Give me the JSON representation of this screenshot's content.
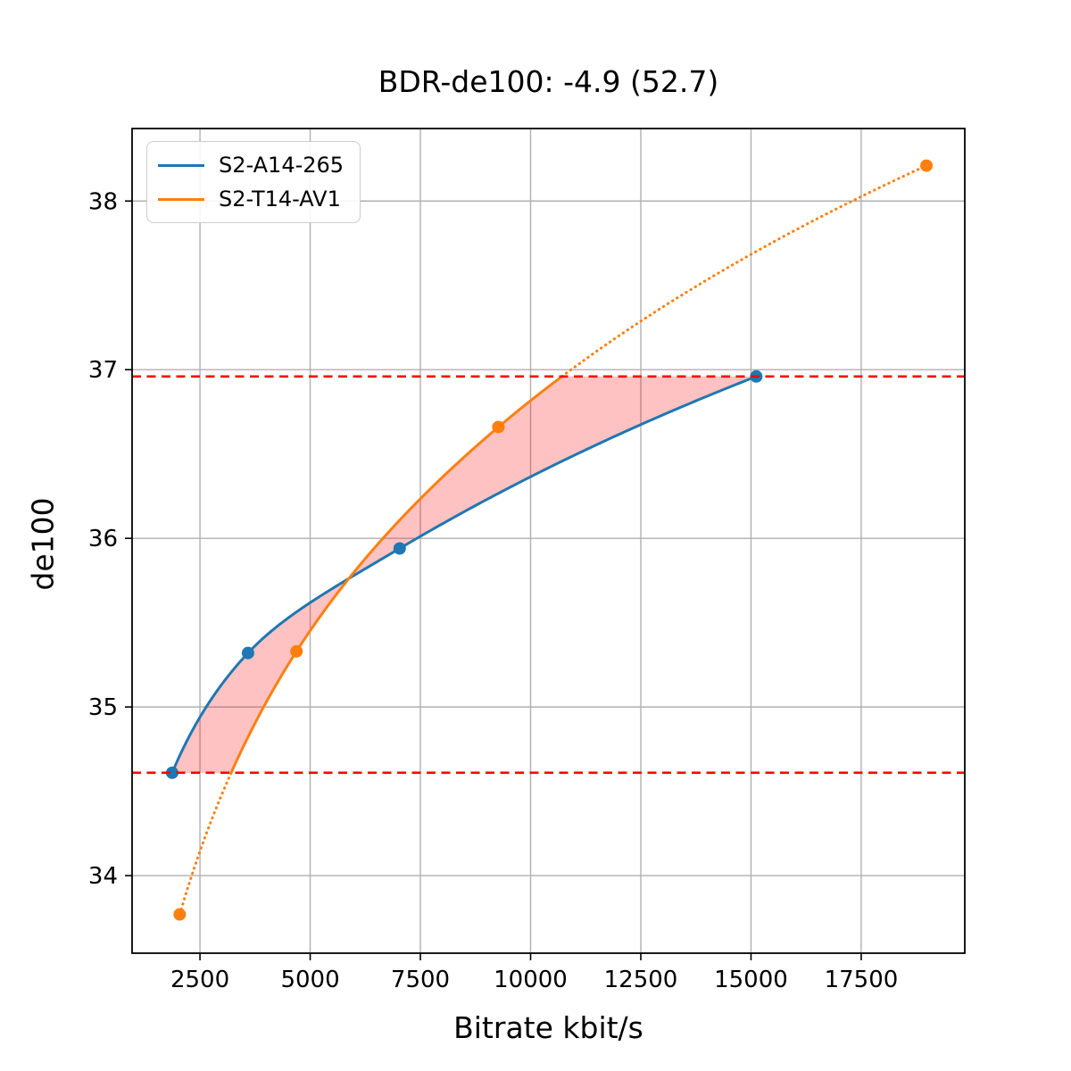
{
  "chart_data": {
    "type": "line",
    "title": "BDR-de100: -4.9 (52.7)",
    "xlabel": "Bitrate kbit/s",
    "ylabel": "de100",
    "xlim": [
      960,
      19850
    ],
    "ylim": [
      33.54,
      38.43
    ],
    "xticks": [
      2500,
      5000,
      7500,
      10000,
      12500,
      15000,
      17500
    ],
    "yticks": [
      34,
      35,
      36,
      37,
      38
    ],
    "grid": true,
    "grid_color": "#b0b0b0",
    "legend_position": "upper left",
    "interpolation": "pchip-logx",
    "series": [
      {
        "name": "S2-A14-265",
        "color": "#1f77b4",
        "style": "solid",
        "points": [
          [
            1870,
            34.61
          ],
          [
            3590,
            35.32
          ],
          [
            7030,
            35.94
          ],
          [
            15120,
            36.96
          ]
        ]
      },
      {
        "name": "S2-T14-AV1",
        "color": "#ff7f0e",
        "style": "solid-inside-overlap-dotted-outside",
        "points": [
          [
            2040,
            33.77
          ],
          [
            4690,
            35.33
          ],
          [
            9270,
            36.66
          ],
          [
            18980,
            38.21
          ]
        ]
      }
    ],
    "overlap_lines": {
      "values": [
        34.61,
        36.96
      ],
      "color": "#ff0000",
      "style": "dashed"
    },
    "overlap_fill": {
      "color": "#ff0000",
      "opacity": 0.24
    }
  }
}
